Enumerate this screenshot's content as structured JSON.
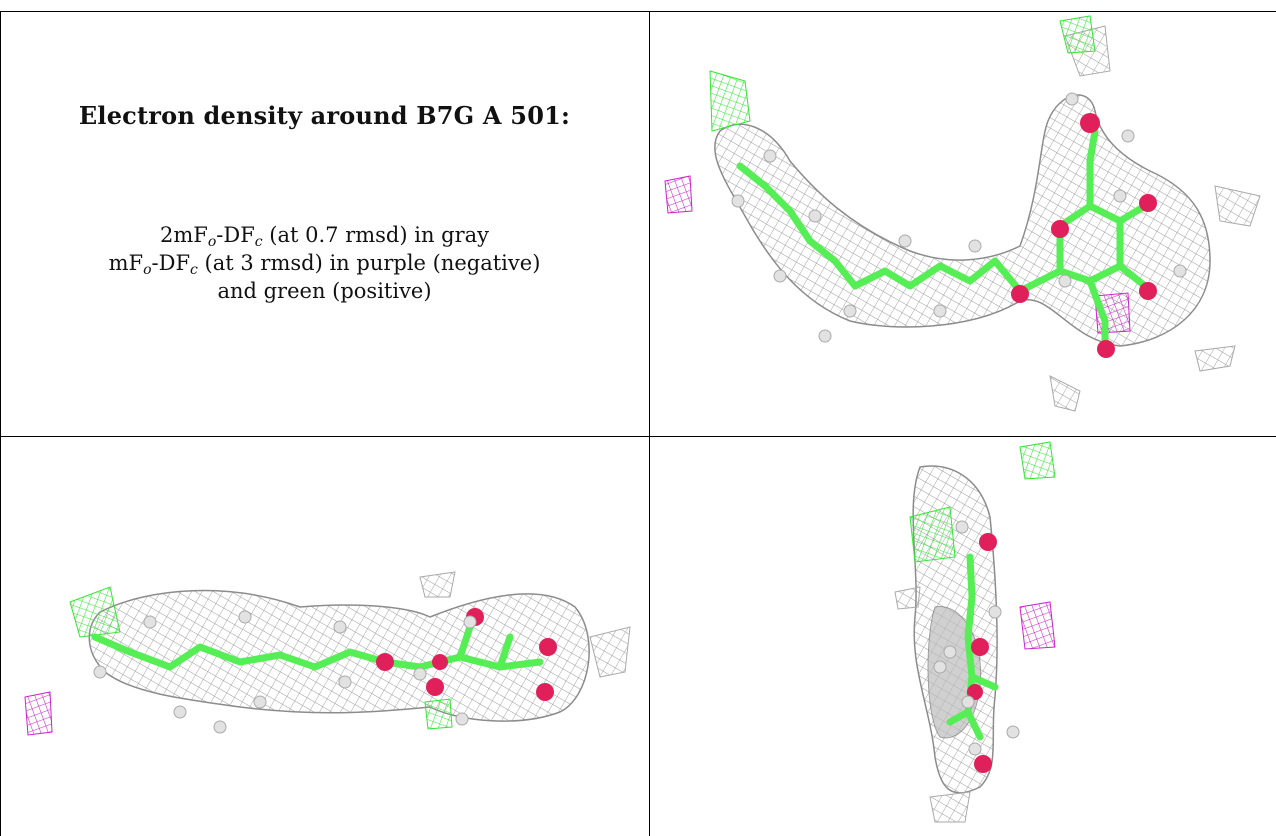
{
  "title": "Electron density around B7G A 501:",
  "legend": {
    "line1": {
      "prefix": "2mF",
      "sub1": "o",
      "mid": "-DF",
      "sub2": "c",
      "suffix": " (at 0.7 rmsd) in gray"
    },
    "line2": {
      "prefix": "mF",
      "sub1": "o",
      "mid": "-DF",
      "sub2": "c",
      "suffix": " (at 3 rmsd) in purple (negative)"
    },
    "line3": "and green (positive)"
  },
  "colors": {
    "mesh_gray": "#9a9a9a",
    "positive_green": "#33e633",
    "negative_purple": "#cc22cc",
    "carbon_green": "#55ee55",
    "oxygen_red": "#e0205a",
    "hydrogen_white": "#dcdcdc"
  },
  "views": [
    "view-front",
    "view-side",
    "view-end"
  ]
}
